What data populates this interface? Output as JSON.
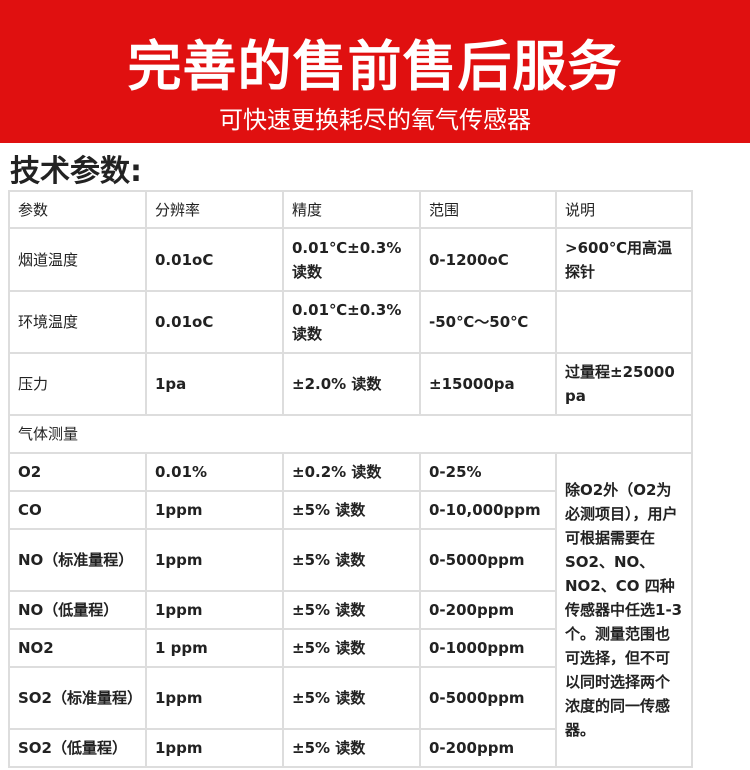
{
  "banner": {
    "title": "完善的售前售后服务",
    "subtitle": "可快速更换耗尽的氧气传感器"
  },
  "heading": "技术参数:",
  "table": {
    "headers": [
      "参数",
      "分辨率",
      "精度",
      "范围",
      "说明"
    ],
    "rows": [
      [
        "烟道温度",
        "0.01oC",
        "0.01℃±0.3% 读数",
        "0-1200oC",
        ">600℃用高温探针"
      ],
      [
        "环境温度",
        "0.01oC",
        "0.01℃±0.3% 读数",
        "-50℃～50℃",
        ""
      ],
      [
        "压力",
        "1pa",
        "±2.0% 读数",
        "±15000pa",
        "过量程±25000 pa"
      ]
    ],
    "section": "气体测量",
    "gas_rows": [
      [
        "O2",
        "0.01%",
        "±0.2% 读数",
        "0-25%"
      ],
      [
        "CO",
        "1ppm",
        "±5% 读数",
        "0-10,000ppm"
      ],
      [
        "NO（标准量程）",
        "1ppm",
        "±5% 读数",
        "0-5000ppm"
      ],
      [
        "NO（低量程）",
        "1ppm",
        "±5% 读数",
        "0-200ppm"
      ],
      [
        "NO2",
        "1 ppm",
        "±5% 读数",
        "0-1000ppm"
      ],
      [
        "SO2（标准量程）",
        "1ppm",
        "±5% 读数",
        "0-5000ppm"
      ],
      [
        "SO2（低量程）",
        "1ppm",
        "±5% 读数",
        "0-200ppm"
      ]
    ],
    "gas_note": "除O2外（O2为必测项目），用户可根据需要在 SO2、NO、NO2、CO 四种传感器中任选1-3 个。测量范围也可选择，但不可以同时选择两个浓度的同一传感器。"
  }
}
